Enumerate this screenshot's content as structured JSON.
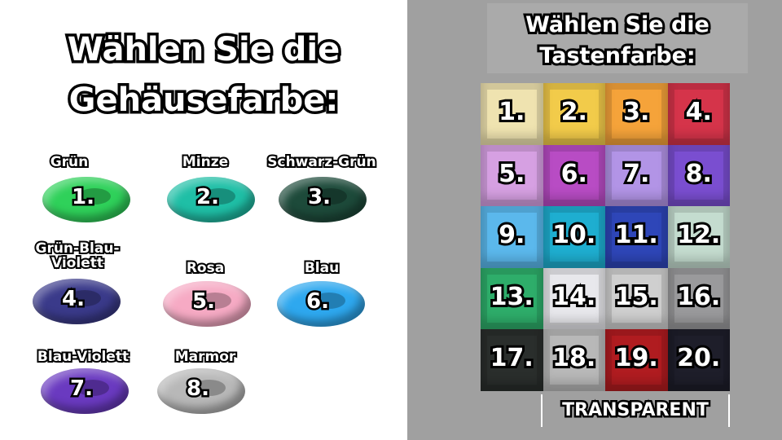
{
  "left": {
    "title_line1": "Wählen Sie die",
    "title_line2": "Gehäusefarbe:",
    "cases": [
      {
        "label": "Grün",
        "num": "1.",
        "color": "#2fd15a"
      },
      {
        "label": "Minze",
        "num": "2.",
        "color": "#1fbfa6"
      },
      {
        "label": "Schwarz-Grün",
        "num": "3.",
        "color": "#1d4a3a"
      },
      {
        "label": "Grün-Blau-\nViolett",
        "num": "4.",
        "color": "#3a3a8a"
      },
      {
        "label": "Rosa",
        "num": "5.",
        "color": "#f6aac4"
      },
      {
        "label": "Blau",
        "num": "6.",
        "color": "#2ea8ef"
      },
      {
        "label": "Blau-Violett",
        "num": "7.",
        "color": "#6a3ac0"
      },
      {
        "label": "Marmor",
        "num": "8.",
        "color": "#b8b8b8"
      }
    ]
  },
  "right": {
    "title_line1": "Wählen Sie die",
    "title_line2": "Tastenfarbe:",
    "keys": [
      {
        "num": "1.",
        "color": "#efe3b0"
      },
      {
        "num": "2.",
        "color": "#f2cb4a"
      },
      {
        "num": "3.",
        "color": "#f5a33a"
      },
      {
        "num": "4.",
        "color": "#d5344a"
      },
      {
        "num": "5.",
        "color": "#d6a0e2"
      },
      {
        "num": "6.",
        "color": "#b84cc4"
      },
      {
        "num": "7.",
        "color": "#b294e6"
      },
      {
        "num": "8.",
        "color": "#7a4ed0"
      },
      {
        "num": "9.",
        "color": "#5bb8ec"
      },
      {
        "num": "10.",
        "color": "#1eaed0"
      },
      {
        "num": "11.",
        "color": "#2e46b8"
      },
      {
        "num": "12.",
        "color": "#c4dccf"
      },
      {
        "num": "13.",
        "color": "#2ead6a"
      },
      {
        "num": "14.",
        "color": "#e8e8ec"
      },
      {
        "num": "15.",
        "color": "#cfcfcf"
      },
      {
        "num": "16.",
        "color": "#9a9a9c"
      },
      {
        "num": "17.",
        "color": "#2a2e2c"
      },
      {
        "num": "18.",
        "color": "#b8b8b8"
      },
      {
        "num": "19.",
        "color": "#b01c20"
      },
      {
        "num": "20.",
        "color": "#1e1e2a"
      }
    ],
    "transparent_label": "TRANSPARENT"
  }
}
